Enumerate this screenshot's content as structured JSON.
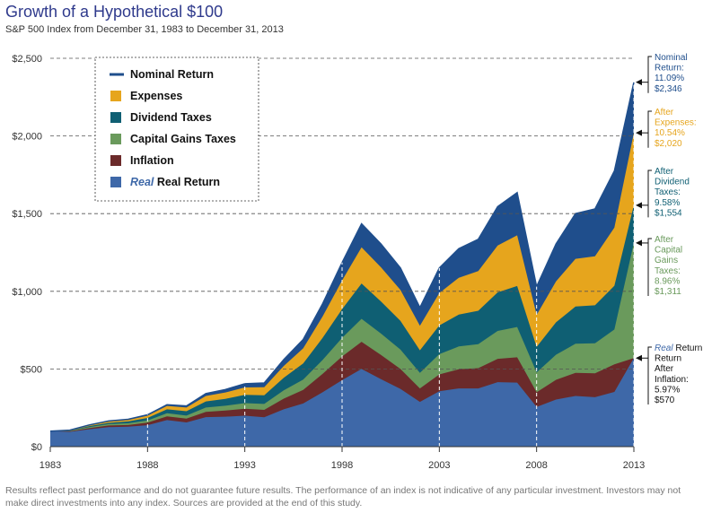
{
  "chart_data": {
    "type": "area",
    "title": "Growth of a Hypothetical $100",
    "subtitle": "S&P 500 Index from December 31, 1983 to December 31, 2013",
    "x": [
      1983,
      1984,
      1985,
      1986,
      1987,
      1988,
      1989,
      1990,
      1991,
      1992,
      1993,
      1994,
      1995,
      1996,
      1997,
      1998,
      1999,
      2000,
      2001,
      2002,
      2003,
      2004,
      2005,
      2006,
      2007,
      2008,
      2009,
      2010,
      2011,
      2012,
      2013
    ],
    "x_ticks": [
      "1983",
      "1988",
      "1993",
      "1998",
      "2003",
      "2008",
      "2013"
    ],
    "y_ticks": [
      "$0",
      "$500",
      "$1,000",
      "$1,500",
      "$2,000",
      "$2,500"
    ],
    "ylim": [
      0,
      2500
    ],
    "gridlines": "dashed horizontal",
    "legend_position": "top-left",
    "series": [
      {
        "name": "Nominal Return",
        "color": "#1f4e8c",
        "values": [
          100,
          106,
          140,
          165,
          176,
          205,
          270,
          262,
          342,
          368,
          405,
          410,
          560,
          690,
          920,
          1185,
          1435,
          1305,
          1150,
          895,
          1150,
          1275,
          1335,
          1545,
          1635,
          1030,
          1305,
          1500,
          1530,
          1775,
          2346
        ]
      },
      {
        "name": "Expenses",
        "color": "#e6a51d",
        "values": [
          100,
          105,
          138,
          162,
          172,
          199,
          262,
          252,
          326,
          349,
          381,
          383,
          519,
          633,
          838,
          1070,
          1283,
          1155,
          1009,
          778,
          989,
          1087,
          1130,
          1295,
          1360,
          848,
          1064,
          1209,
          1226,
          1410,
          2020
        ]
      },
      {
        "name": "Dividend Taxes",
        "color": "#0f5f73",
        "values": [
          100,
          103,
          132,
          153,
          162,
          185,
          240,
          228,
          291,
          308,
          333,
          331,
          443,
          535,
          700,
          885,
          1050,
          935,
          810,
          620,
          780,
          850,
          875,
          993,
          1034,
          642,
          800,
          902,
          910,
          1036,
          1554
        ]
      },
      {
        "name": "Capital Gains Taxes",
        "color": "#6a9a5c",
        "values": [
          100,
          102,
          126,
          145,
          150,
          168,
          215,
          200,
          252,
          263,
          280,
          275,
          362,
          432,
          558,
          700,
          823,
          728,
          625,
          475,
          595,
          645,
          660,
          745,
          770,
          478,
          592,
          662,
          665,
          754,
          1311
        ]
      },
      {
        "name": "Inflation",
        "color": "#6b2a2a",
        "values": [
          100,
          99,
          119,
          136,
          139,
          154,
          195,
          180,
          224,
          232,
          244,
          237,
          309,
          365,
          468,
          580,
          675,
          590,
          500,
          375,
          465,
          498,
          505,
          565,
          575,
          350,
          430,
          475,
          472,
          530,
          570
        ]
      },
      {
        "name": "Real Return",
        "label_prefix": "Real",
        "color": "#3e68a8",
        "values": [
          100,
          95,
          112,
          126,
          128,
          138,
          171,
          156,
          190,
          193,
          199,
          189,
          240,
          278,
          350,
          428,
          500,
          435,
          372,
          288,
          357,
          375,
          375,
          415,
          412,
          255,
          303,
          326,
          318,
          352,
          570
        ]
      }
    ],
    "annotations": [
      {
        "lines": [
          "Nominal",
          "Return:",
          "11.09%",
          "$2,346"
        ],
        "color": "#1f4e8c"
      },
      {
        "lines": [
          "After",
          "Expenses:",
          "10.54%",
          "$2,020"
        ],
        "color": "#e6a51d"
      },
      {
        "lines": [
          "After",
          "Dividend",
          "Taxes:",
          "9.58%",
          "$1,554"
        ],
        "color": "#0f5f73"
      },
      {
        "lines": [
          "After",
          "Capital",
          "Gains",
          "Taxes:",
          "8.96%",
          "$1,311"
        ],
        "color": "#6a9a5c"
      },
      {
        "lines": [
          "Real Return",
          "Return",
          "After",
          "Inflation:",
          "5.97%",
          "$570"
        ],
        "color": "#111111",
        "italic_prefix": "Real"
      }
    ]
  },
  "footer": "Results reflect past performance and do not guarantee future results. The performance of an index is not indicative of any particular investment. Investors may not make direct investments into any index. Sources are provided at the end of this study."
}
